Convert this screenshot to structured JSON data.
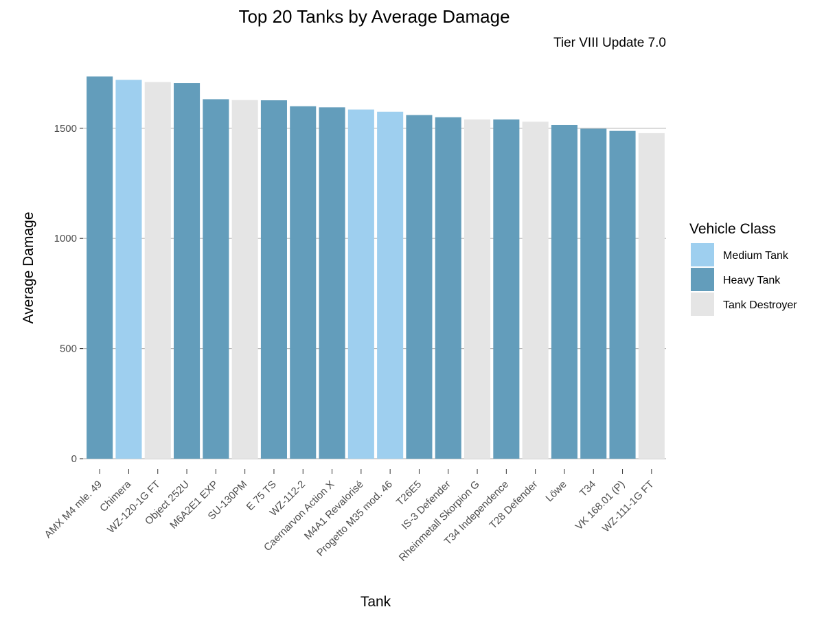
{
  "chart_data": {
    "type": "bar",
    "title": "Top 20 Tanks by Average Damage",
    "subtitle": "Tier VIII Update 7.0",
    "xlabel": "Tank",
    "ylabel": "Average Damage",
    "ylim": [
      0,
      1800
    ],
    "yticks": [
      0,
      500,
      1000,
      1500
    ],
    "grid": "horizontal major",
    "legend": {
      "title": "Vehicle Class",
      "placement": "right",
      "entries": [
        {
          "name": "Medium Tank",
          "color": "#9ecfef"
        },
        {
          "name": "Heavy Tank",
          "color": "#639dbb"
        },
        {
          "name": "Tank Destroyer",
          "color": "#e5e5e5"
        }
      ]
    },
    "categories": [
      "AMX M4 mle. 49",
      "Chimera",
      "WZ-120-1G FT",
      "Object 252U",
      "M6A2E1 EXP",
      "SU-130PM",
      "E 75 TS",
      "WZ-112-2",
      "Caernarvon Action X",
      "M4A1 Revalorisé",
      "Progetto M35 mod. 46",
      "T26E5",
      "IS-3 Defender",
      "Rheinmetall Skorpion G",
      "T34 Independence",
      "T28 Defender",
      "Löwe",
      "T34",
      "VK 168.01 (P)",
      "WZ-111-1G FT"
    ],
    "values": [
      1735,
      1720,
      1710,
      1705,
      1632,
      1628,
      1627,
      1600,
      1595,
      1585,
      1575,
      1560,
      1550,
      1540,
      1540,
      1530,
      1515,
      1498,
      1488,
      1478
    ],
    "vehicle_class": [
      "Heavy Tank",
      "Medium Tank",
      "Tank Destroyer",
      "Heavy Tank",
      "Heavy Tank",
      "Tank Destroyer",
      "Heavy Tank",
      "Heavy Tank",
      "Heavy Tank",
      "Medium Tank",
      "Medium Tank",
      "Heavy Tank",
      "Heavy Tank",
      "Tank Destroyer",
      "Heavy Tank",
      "Tank Destroyer",
      "Heavy Tank",
      "Heavy Tank",
      "Heavy Tank",
      "Tank Destroyer"
    ]
  }
}
